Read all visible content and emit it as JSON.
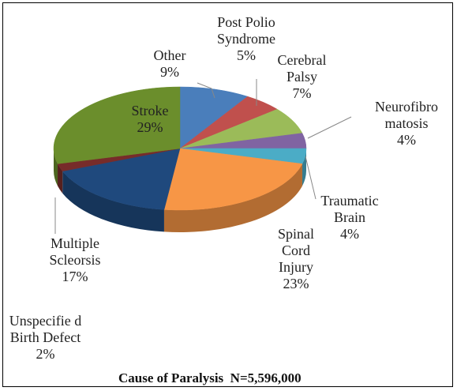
{
  "chart_data": {
    "type": "pie",
    "title": "Cause of Paralysis  N=5,596,000",
    "categories": [
      "Other",
      "Post Polio Syndrome",
      "Cerebral Palsy",
      "Neurofibro matosis",
      "Traumatic Brain",
      "Spinal Cord Injury",
      "Multiple Scleorsis",
      "Unspecifie d Birth Defect",
      "Stroke"
    ],
    "values": [
      9,
      5,
      7,
      4,
      4,
      23,
      17,
      2,
      29
    ],
    "value_labels": [
      "9%",
      "5%",
      "7%",
      "4%",
      "4%",
      "23%",
      "17%",
      "2%",
      "29%"
    ],
    "colors": [
      "#4a7ebb",
      "#c0504d",
      "#9bbb59",
      "#8064a2",
      "#4bacc6",
      "#f79646",
      "#1f497d",
      "#772c2a",
      "#6b8e2c"
    ]
  }
}
